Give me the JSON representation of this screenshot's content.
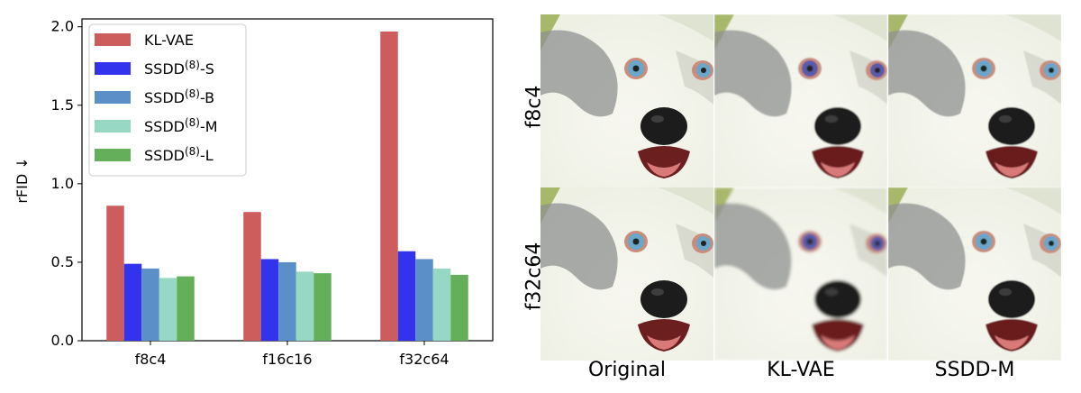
{
  "chart_data": {
    "type": "bar",
    "categories": [
      "f8c4",
      "f16c16",
      "f32c64"
    ],
    "series": [
      {
        "name": "KL-VAE",
        "values": [
          0.86,
          0.82,
          1.97
        ],
        "color": "#cd5c5c"
      },
      {
        "name": "SSDD-S",
        "values": [
          0.49,
          0.52,
          0.57
        ],
        "color": "#3333ee"
      },
      {
        "name": "SSDD-B",
        "values": [
          0.46,
          0.5,
          0.52
        ],
        "color": "#5b8fc7"
      },
      {
        "name": "SSDD-M",
        "values": [
          0.4,
          0.44,
          0.46
        ],
        "color": "#96d8c4"
      },
      {
        "name": "SSDD-L",
        "values": [
          0.41,
          0.43,
          0.42
        ],
        "color": "#64af5a"
      }
    ],
    "legend_labels": [
      {
        "base": "KL-VAE",
        "sup": "",
        "suffix": ""
      },
      {
        "base": "SSDD",
        "sup": "(8)",
        "suffix": "-S"
      },
      {
        "base": "SSDD",
        "sup": "(8)",
        "suffix": "-B"
      },
      {
        "base": "SSDD",
        "sup": "(8)",
        "suffix": "-M"
      },
      {
        "base": "SSDD",
        "sup": "(8)",
        "suffix": "-L"
      }
    ],
    "ylabel": "rFID ↓",
    "xlabel": "",
    "ylim": [
      0,
      2.05
    ],
    "yticks": [
      "0.0",
      "0.5",
      "1.0",
      "1.5",
      "2.0"
    ],
    "ytick_values": [
      0,
      0.5,
      1.0,
      1.5,
      2.0
    ],
    "legend_position": "top-left",
    "grid": false
  },
  "image_grid": {
    "row_labels": [
      "f8c4",
      "f32c64"
    ],
    "column_labels": [
      "Original",
      "KL-VAE",
      "SSDD-M"
    ]
  },
  "colors": {
    "fur": "#eef0e4",
    "background_green": "#a8b86a",
    "grey_patch": "#8d9090",
    "eye": "#6aa7c9",
    "nose": "#1c1c1c"
  }
}
